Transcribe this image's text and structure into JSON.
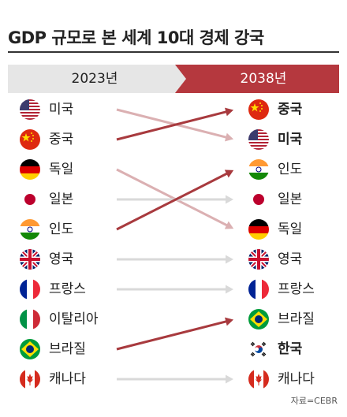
{
  "title": "GDP 규모로 본 세계 10대 경제 강국",
  "header": {
    "left": "2023년",
    "right": "2038년"
  },
  "rank_2023": [
    {
      "name": "미국",
      "flag": "us-flag-icon"
    },
    {
      "name": "중국",
      "flag": "china-flag-icon"
    },
    {
      "name": "독일",
      "flag": "germany-flag-icon"
    },
    {
      "name": "일본",
      "flag": "japan-flag-icon"
    },
    {
      "name": "인도",
      "flag": "india-flag-icon"
    },
    {
      "name": "영국",
      "flag": "uk-flag-icon"
    },
    {
      "name": "프랑스",
      "flag": "france-flag-icon"
    },
    {
      "name": "이탈리아",
      "flag": "italy-flag-icon"
    },
    {
      "name": "브라질",
      "flag": "brazil-flag-icon"
    },
    {
      "name": "캐나다",
      "flag": "canada-flag-icon"
    }
  ],
  "rank_2038": [
    {
      "name": "중국",
      "flag": "china-flag-icon",
      "bold": true
    },
    {
      "name": "미국",
      "flag": "us-flag-icon",
      "bold": true
    },
    {
      "name": "인도",
      "flag": "india-flag-icon",
      "bold": false
    },
    {
      "name": "일본",
      "flag": "japan-flag-icon",
      "bold": false
    },
    {
      "name": "독일",
      "flag": "germany-flag-icon",
      "bold": false
    },
    {
      "name": "영국",
      "flag": "uk-flag-icon",
      "bold": false
    },
    {
      "name": "프랑스",
      "flag": "france-flag-icon",
      "bold": false
    },
    {
      "name": "브라질",
      "flag": "brazil-flag-icon",
      "bold": false
    },
    {
      "name": "한국",
      "flag": "korea-flag-icon",
      "bold": true
    },
    {
      "name": "캐나다",
      "flag": "canada-flag-icon",
      "bold": false
    }
  ],
  "moves": [
    {
      "from": 1,
      "to": 2,
      "type": "down"
    },
    {
      "from": 2,
      "to": 1,
      "type": "up"
    },
    {
      "from": 3,
      "to": 5,
      "type": "down"
    },
    {
      "from": 4,
      "to": 4,
      "type": "same"
    },
    {
      "from": 5,
      "to": 3,
      "type": "up"
    },
    {
      "from": 6,
      "to": 6,
      "type": "same"
    },
    {
      "from": 7,
      "to": 7,
      "type": "same"
    },
    {
      "from": 9,
      "to": 8,
      "type": "up"
    },
    {
      "from": 10,
      "to": 10,
      "type": "same"
    }
  ],
  "colors": {
    "up": "#a83a3e",
    "down": "#dbb0b2",
    "same": "#d9d9d9",
    "header_right": "#b5383e",
    "header_left": "#e6e6e6"
  },
  "source": "자료=CEBR"
}
